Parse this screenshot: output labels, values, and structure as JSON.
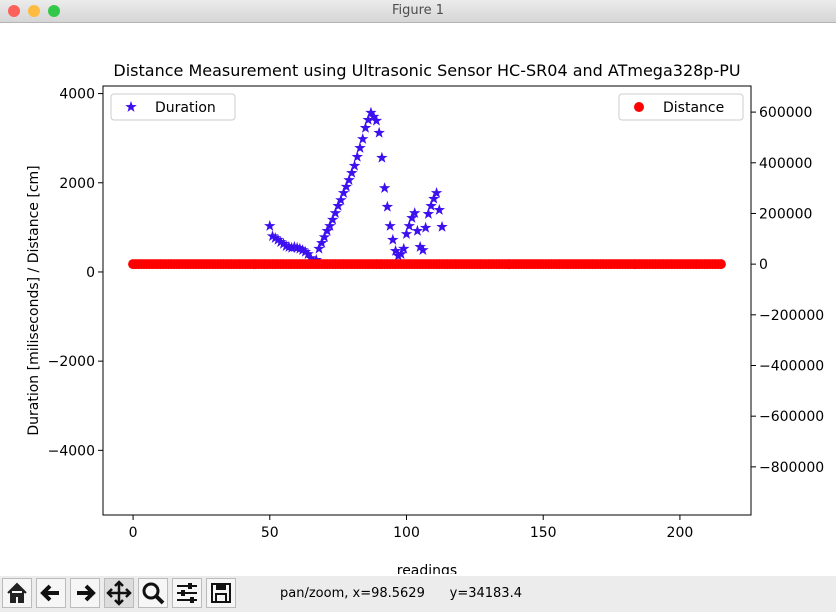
{
  "window": {
    "title": "Figure 1",
    "status": "pan/zoom, x=98.5629",
    "status_y": "y=34183.4"
  },
  "chart_data": {
    "type": "scatter",
    "title": "Distance Measurement using Ultrasonic Sensor HC-SR04 and ATmega328p-PU",
    "xlabel": "readings",
    "ylabel": "Duration [miliseconds] / Distance [cm]",
    "xlim": [
      -11,
      226
    ],
    "xticks": [
      0,
      50,
      100,
      150,
      200
    ],
    "ylim": [
      -5450,
      4170
    ],
    "yticks": [
      {
        "value": -4000,
        "label": "−4000"
      },
      {
        "value": -2000,
        "label": "−2000"
      },
      0,
      2000,
      4000
    ],
    "y2lim": [
      -990000,
      703000
    ],
    "y2ticks": [
      {
        "value": -800000,
        "label": "−800000"
      },
      {
        "value": -600000,
        "label": "−600000"
      },
      {
        "value": -400000,
        "label": "−400000"
      },
      {
        "value": -200000,
        "label": "−200000"
      },
      0,
      200000,
      400000,
      600000
    ],
    "series": [
      {
        "name": "Duration",
        "color": "#3d10f0",
        "marker": "star",
        "axis": "y",
        "legend": "upper left",
        "x": [
          50,
          51,
          52,
          53,
          54,
          55,
          56,
          57,
          58,
          59,
          60,
          61,
          62,
          63,
          64,
          65,
          66,
          67,
          68,
          69,
          70,
          71,
          72,
          73,
          74,
          75,
          76,
          77,
          78,
          79,
          80,
          81,
          82,
          83,
          84,
          85,
          86,
          87,
          88,
          89,
          90,
          91,
          92,
          93,
          94,
          95,
          96,
          97,
          98,
          99,
          100,
          101,
          102,
          103,
          104,
          105,
          106,
          107,
          108,
          109,
          110,
          111,
          112,
          113
        ],
        "values": [
          1030,
          800,
          760,
          720,
          670,
          630,
          580,
          560,
          540,
          560,
          540,
          520,
          490,
          450,
          400,
          310,
          220,
          270,
          520,
          650,
          780,
          920,
          1030,
          1170,
          1320,
          1480,
          1610,
          1770,
          1910,
          2060,
          2220,
          2380,
          2580,
          2780,
          2980,
          3230,
          3410,
          3570,
          3480,
          3390,
          3120,
          2560,
          1880,
          1460,
          1030,
          720,
          470,
          360,
          400,
          520,
          850,
          1030,
          1210,
          1320,
          920,
          560,
          490,
          990,
          1300,
          1480,
          1640,
          1770,
          1390,
          1010
        ]
      },
      {
        "name": "Distance",
        "color": "#ff0000",
        "marker": "circle",
        "axis": "y2",
        "legend": "upper right",
        "x": [
          0,
          1,
          2,
          3,
          4,
          5,
          6,
          7,
          8,
          9,
          10,
          11,
          12,
          13,
          14,
          15,
          16,
          17,
          18,
          19,
          20,
          21,
          22,
          23,
          24,
          25,
          26,
          27,
          28,
          29,
          30,
          31,
          32,
          33,
          34,
          35,
          36,
          37,
          38,
          39,
          40,
          41,
          42,
          43,
          44,
          45,
          46,
          47,
          48,
          49,
          50,
          51,
          52,
          53,
          54,
          55,
          56,
          57,
          58,
          59,
          60,
          61,
          62,
          63,
          64,
          65,
          66,
          67,
          68,
          69,
          70,
          71,
          72,
          73,
          74,
          75,
          76,
          77,
          78,
          79,
          80,
          81,
          82,
          83,
          84,
          85,
          86,
          87,
          88,
          89,
          90,
          91,
          92,
          93,
          94,
          95,
          96,
          97,
          98,
          99,
          100,
          101,
          102,
          103,
          104,
          105,
          106,
          107,
          108,
          109,
          110,
          111,
          112,
          113,
          114,
          115,
          116,
          117,
          118,
          119,
          120,
          121,
          122,
          123,
          124,
          125,
          126,
          127,
          128,
          129,
          130,
          131,
          132,
          133,
          134,
          135,
          136,
          137,
          138,
          139,
          140,
          141,
          142,
          143,
          144,
          145,
          146,
          147,
          148,
          149,
          150,
          151,
          152,
          153,
          154,
          155,
          156,
          157,
          158,
          159,
          160,
          161,
          162,
          163,
          164,
          165,
          166,
          167,
          168,
          169,
          170,
          171,
          172,
          173,
          174,
          175,
          176,
          177,
          178,
          179,
          180,
          181,
          182,
          183,
          184,
          185,
          186,
          187,
          188,
          189,
          190,
          191,
          192,
          193,
          194,
          195,
          196,
          197,
          198,
          199,
          200,
          201,
          202,
          203,
          204,
          205,
          206,
          207,
          208,
          209,
          210,
          211,
          212,
          213,
          214,
          215
        ],
        "values": [
          0,
          0,
          0,
          0,
          0,
          0,
          0,
          0,
          0,
          0,
          0,
          0,
          0,
          0,
          0,
          0,
          0,
          0,
          0,
          0,
          0,
          0,
          0,
          0,
          0,
          0,
          0,
          0,
          0,
          0,
          0,
          0,
          0,
          0,
          0,
          0,
          0,
          0,
          0,
          0,
          0,
          0,
          0,
          0,
          0,
          0,
          0,
          0,
          0,
          0,
          0,
          0,
          0,
          0,
          0,
          0,
          0,
          0,
          0,
          0,
          0,
          0,
          0,
          0,
          0,
          0,
          0,
          0,
          0,
          0,
          0,
          0,
          0,
          0,
          0,
          0,
          0,
          0,
          0,
          0,
          0,
          0,
          0,
          0,
          0,
          0,
          0,
          0,
          0,
          0,
          0,
          0,
          0,
          0,
          0,
          0,
          0,
          0,
          0,
          0,
          0,
          0,
          0,
          0,
          0,
          0,
          0,
          0,
          0,
          0,
          0,
          0,
          0,
          0,
          0,
          0,
          0,
          0,
          0,
          0,
          0,
          0,
          0,
          0,
          0,
          0,
          0,
          0,
          0,
          0,
          0,
          0,
          0,
          0,
          0,
          0,
          0,
          0,
          0,
          0,
          0,
          0,
          0,
          0,
          0,
          0,
          0,
          0,
          0,
          0,
          0,
          0,
          0,
          0,
          0,
          0,
          0,
          0,
          0,
          0,
          0,
          0,
          0,
          0,
          0,
          0,
          0,
          0,
          0,
          0,
          0,
          0,
          0,
          0,
          0,
          0,
          0,
          0,
          0,
          0,
          0,
          0,
          0,
          0,
          0,
          0,
          0,
          0,
          0,
          0,
          0,
          0,
          0,
          0,
          0,
          0,
          0,
          0,
          0,
          0,
          0,
          0,
          0,
          0,
          0,
          0,
          0,
          0,
          0,
          0,
          0,
          0,
          0,
          0,
          0,
          0
        ]
      }
    ]
  }
}
